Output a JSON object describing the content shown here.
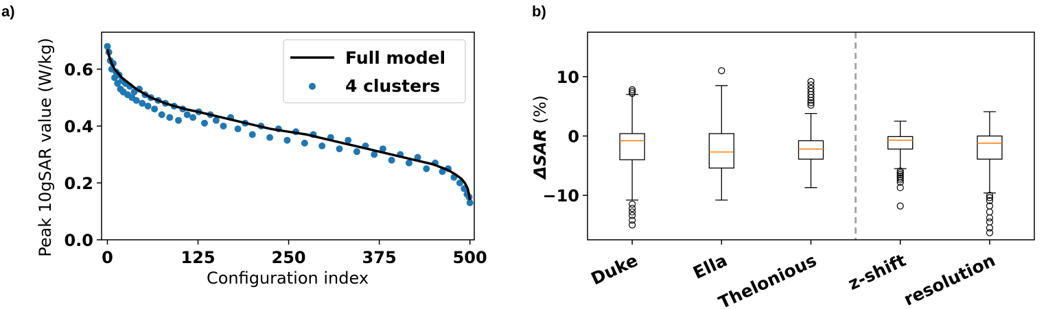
{
  "chart_data": [
    {
      "panel": "a)",
      "type": "scatter",
      "xlabel": "Configuration index",
      "ylabel": "Peak 10gSAR value (W/kg)",
      "xlim": [
        -8,
        506
      ],
      "ylim": [
        0.0,
        0.73
      ],
      "xticks": [
        0,
        125,
        250,
        375,
        500
      ],
      "yticks": [
        0.0,
        0.2,
        0.4,
        0.6
      ],
      "ytick_labels": [
        "0.0",
        "0.2",
        "0.4",
        "0.6"
      ],
      "legend_position": "top-right",
      "series": [
        {
          "name": "Full model",
          "kind": "line",
          "color": "#000000",
          "x": [
            0,
            3,
            6,
            10,
            15,
            20,
            30,
            40,
            50,
            60,
            70,
            80,
            90,
            100,
            110,
            125,
            150,
            175,
            200,
            225,
            250,
            275,
            300,
            325,
            350,
            375,
            400,
            425,
            450,
            460,
            470,
            480,
            488,
            493,
            497,
            500
          ],
          "y": [
            0.67,
            0.64,
            0.62,
            0.6,
            0.585,
            0.57,
            0.55,
            0.53,
            0.515,
            0.5,
            0.49,
            0.48,
            0.472,
            0.465,
            0.458,
            0.45,
            0.435,
            0.42,
            0.405,
            0.39,
            0.38,
            0.37,
            0.355,
            0.34,
            0.325,
            0.31,
            0.295,
            0.28,
            0.265,
            0.255,
            0.245,
            0.23,
            0.215,
            0.2,
            0.18,
            0.14
          ]
        },
        {
          "name": "4 clusters",
          "kind": "scatter",
          "color": "#1f77b4",
          "x": [
            0,
            2,
            4,
            6,
            8,
            10,
            12,
            14,
            16,
            18,
            20,
            22,
            25,
            28,
            31,
            34,
            37,
            40,
            44,
            48,
            52,
            56,
            60,
            65,
            70,
            75,
            80,
            86,
            92,
            98,
            104,
            110,
            118,
            126,
            134,
            142,
            150,
            160,
            170,
            180,
            190,
            200,
            212,
            224,
            236,
            248,
            260,
            272,
            284,
            296,
            308,
            320,
            332,
            344,
            356,
            368,
            380,
            392,
            404,
            416,
            428,
            440,
            452,
            462,
            470,
            478,
            486,
            492,
            496,
            499,
            500
          ],
          "y": [
            0.68,
            0.66,
            0.63,
            0.6,
            0.62,
            0.57,
            0.59,
            0.55,
            0.58,
            0.53,
            0.56,
            0.52,
            0.55,
            0.51,
            0.54,
            0.5,
            0.52,
            0.49,
            0.53,
            0.48,
            0.51,
            0.47,
            0.5,
            0.46,
            0.49,
            0.44,
            0.48,
            0.43,
            0.47,
            0.42,
            0.46,
            0.44,
            0.43,
            0.45,
            0.41,
            0.44,
            0.42,
            0.4,
            0.43,
            0.39,
            0.41,
            0.37,
            0.4,
            0.36,
            0.39,
            0.35,
            0.38,
            0.34,
            0.37,
            0.33,
            0.36,
            0.32,
            0.35,
            0.31,
            0.33,
            0.3,
            0.32,
            0.28,
            0.3,
            0.27,
            0.29,
            0.25,
            0.27,
            0.24,
            0.25,
            0.22,
            0.2,
            0.18,
            0.16,
            0.15,
            0.13
          ]
        }
      ]
    },
    {
      "panel": "b)",
      "type": "box",
      "ylabel_italic": "ΔSAR",
      "ylabel_unit": " (%)",
      "ylim": [
        -17.5,
        17.5
      ],
      "yticks": [
        -10,
        0,
        10
      ],
      "ytick_labels": [
        "−10",
        "0",
        "10"
      ],
      "categories": [
        "Duke",
        "Ella",
        "Thelonious",
        "z-shift",
        "resolution"
      ],
      "separator_after_index": 2,
      "median_color": "#ff7f0e",
      "boxes": [
        {
          "whisker_low": -10.8,
          "q1": -4.0,
          "median": -0.8,
          "q3": 0.4,
          "whisker_high": 7.0,
          "outliers": [
            7.2,
            7.5,
            7.8,
            -11.5,
            -12.2,
            -12.8,
            -13.4,
            -14.2,
            -15.0
          ]
        },
        {
          "whisker_low": -10.8,
          "q1": -5.4,
          "median": -2.7,
          "q3": 0.4,
          "whisker_high": 8.5,
          "outliers": [
            11.0
          ]
        },
        {
          "whisker_low": -8.7,
          "q1": -3.9,
          "median": -2.2,
          "q3": -0.8,
          "whisker_high": 3.8,
          "outliers": [
            5.2,
            5.6,
            6.0,
            6.5,
            7.0,
            7.5,
            8.0,
            8.6,
            9.2
          ]
        },
        {
          "whisker_low": -5.5,
          "q1": -2.2,
          "median": -0.7,
          "q3": -0.1,
          "whisker_high": 2.5,
          "outliers": [
            -5.9,
            -6.2,
            -6.5,
            -6.8,
            -7.1,
            -7.4,
            -7.8,
            -8.7,
            -11.8
          ]
        },
        {
          "whisker_low": -9.6,
          "q1": -3.9,
          "median": -1.2,
          "q3": 0.0,
          "whisker_high": 4.1,
          "outliers": [
            -10.0,
            -10.4,
            -10.9,
            -11.8,
            -12.8,
            -13.8,
            -14.5,
            -15.5,
            -16.3
          ]
        }
      ]
    }
  ]
}
